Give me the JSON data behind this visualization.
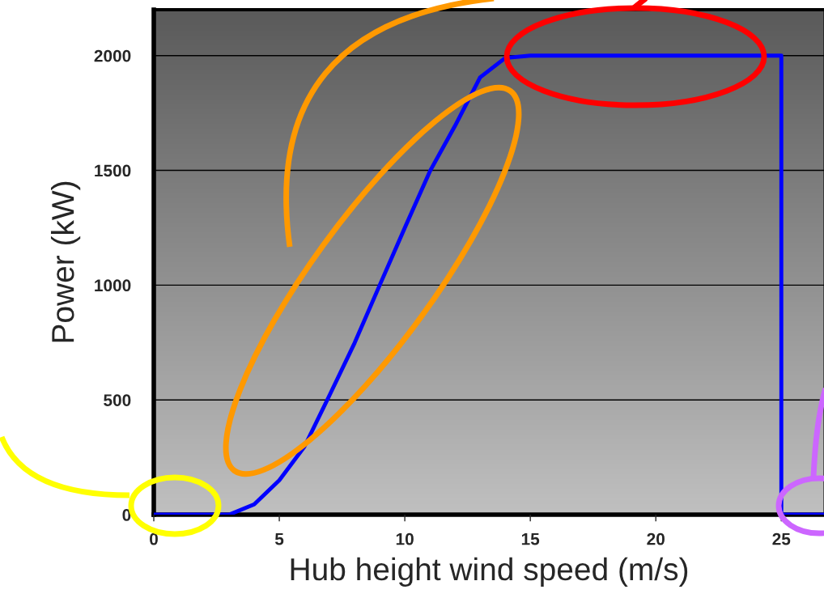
{
  "chart_data": {
    "type": "line",
    "xlabel": "Hub height wind speed (m/s)",
    "ylabel": "Power (kW)",
    "series": [
      {
        "color": "#0000ff",
        "x": [
          0,
          1,
          2,
          3,
          4,
          5,
          6,
          7,
          8,
          9,
          10,
          11,
          12,
          13,
          14,
          15,
          16,
          17,
          18,
          19,
          20,
          21,
          22,
          23,
          24,
          25,
          25,
          26,
          26.7
        ],
        "values": [
          0,
          0,
          0,
          0,
          45,
          150,
          296,
          520,
          748,
          1000,
          1250,
          1496,
          1694,
          1905,
          1990,
          2000,
          2000,
          2000,
          2000,
          2000,
          2000,
          2000,
          2000,
          2000,
          2000,
          2000,
          0,
          0,
          0
        ]
      }
    ],
    "xlim": [
      0,
      26.7
    ],
    "ylim": [
      0,
      2200
    ],
    "xticks": [
      0,
      5,
      10,
      15,
      20,
      25
    ],
    "yticks": [
      0,
      500,
      1000,
      1500,
      2000
    ],
    "grid": "y",
    "marker": "none",
    "line_style": "solid",
    "legend": false
  }
}
